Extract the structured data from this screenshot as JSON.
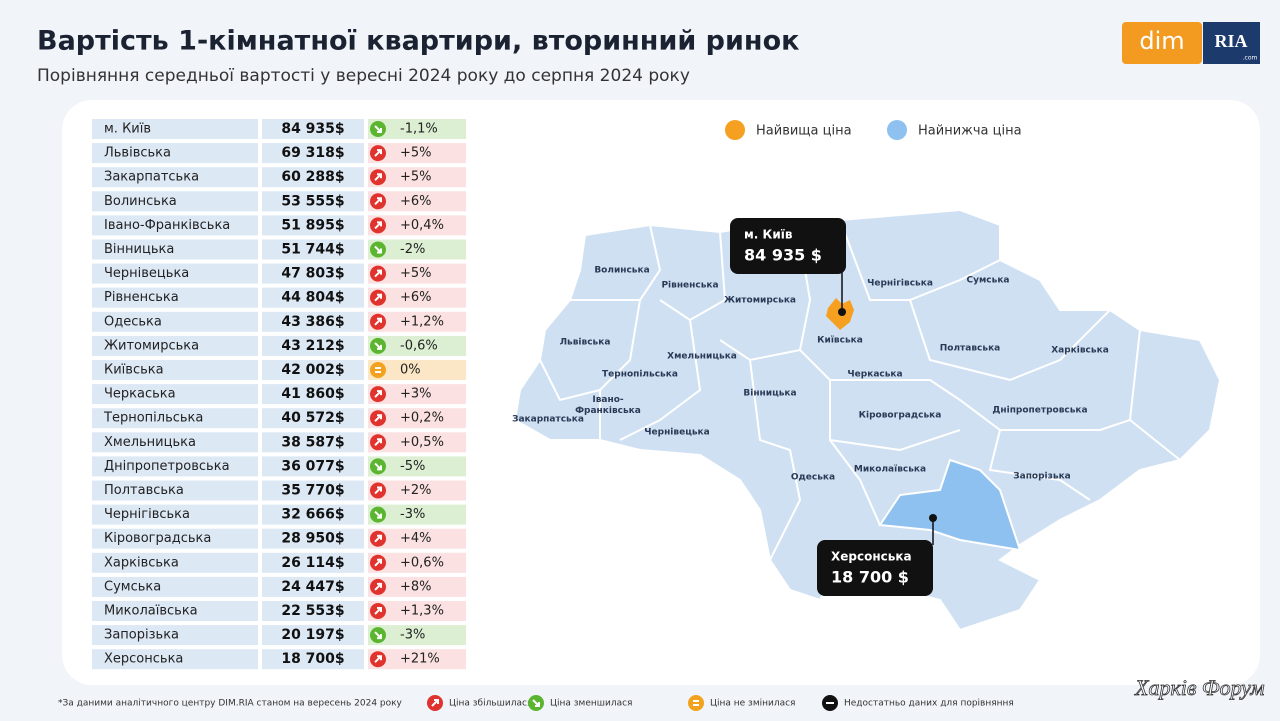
{
  "header": {
    "title": "Вартість 1-кімнатної квартири, вторинний ринок",
    "subtitle": "Порівняння середньої вартості у вересні 2024 року до серпня 2024  року"
  },
  "logo": {
    "left": "dim",
    "right": "RIA",
    "domain": ".com"
  },
  "table": {
    "rows": [
      [
        "м. Київ",
        "84 935$",
        "-1,1%"
      ],
      [
        "Львівська",
        "69 318$",
        "+5%"
      ],
      [
        "Закарпатська",
        "60 288$",
        "+5%"
      ],
      [
        "Волинська",
        "53 555$",
        "+6%"
      ],
      [
        "Івано-Франківська",
        "51 895$",
        "+0,4%"
      ],
      [
        "Вінницька",
        "51 744$",
        "-2%"
      ],
      [
        "Чернівецька",
        "47 803$",
        "+5%"
      ],
      [
        "Рівненська",
        "44 804$",
        "+6%"
      ],
      [
        "Одеська",
        "43 386$",
        "+1,2%"
      ],
      [
        "Житомирська",
        "43 212$",
        "-0,6%"
      ],
      [
        "Київська",
        "42 002$",
        "0%"
      ],
      [
        "Черкаська",
        "41 860$",
        "+3%"
      ],
      [
        "Тернопільська",
        "40 572$",
        "+0,2%"
      ],
      [
        "Хмельницька",
        "38 587$",
        "+0,5%"
      ],
      [
        "Дніпропетровська",
        "36 077$",
        "-5%"
      ],
      [
        "Полтавська",
        "35 770$",
        "+2%"
      ],
      [
        "Чернігівська",
        "32 666$",
        "-3%"
      ],
      [
        "Кіровоградська",
        "28 950$",
        "+4%"
      ],
      [
        "Харківська",
        "26 114$",
        "+0,6%"
      ],
      [
        "Сумська",
        "24 447$",
        "+8%"
      ],
      [
        "Миколаївська",
        "22 553$",
        "+1,3%"
      ],
      [
        "Запорізька",
        "20 197$",
        "-3%"
      ],
      [
        "Херсонська",
        "18 700$",
        "+21%"
      ]
    ]
  },
  "map": {
    "legend": [
      "Найвища ціна",
      "Найнижча ціна"
    ],
    "regions": [
      "Волинська",
      "Рівненська",
      "Житомирська",
      "Чернігівська",
      "Сумська",
      "Львівська",
      "Хмельницька",
      "Київська",
      "Полтавська",
      "Харківська",
      "Тернопільська",
      "Черкаська",
      "Івано-\nФранківська",
      "Вінницька",
      "Кіровоградська",
      "Дніпропетровська",
      "Закарпатська",
      "Чернівецька",
      "Одеська",
      "Миколаївська",
      "Запорізька"
    ],
    "callouts": [
      {
        "label": "м. Київ",
        "value": "84 935 $"
      },
      {
        "label": "Херсонська",
        "value": "18 700 $"
      }
    ]
  },
  "footer": {
    "note": "*За даними аналітичного центру DIM.RIA станом на вересень 2024 року",
    "legend": [
      "Ціна збільшилася",
      "Ціна зменшилася",
      "Ціна не змінилася",
      "Недостатньо даних для порівняння"
    ]
  },
  "watermark": "Харків Форум"
}
